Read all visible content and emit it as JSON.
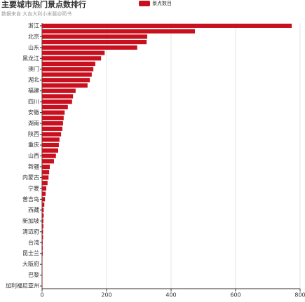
{
  "chart_data": {
    "type": "bar",
    "orientation": "horizontal",
    "title": "主要城市热门景点数排行",
    "subtitle": "数据来自 大吉大利小米酱@简书",
    "legend": "top",
    "series": [
      {
        "name": "景点数目",
        "color": "#c8101e",
        "values": [
          774,
          474,
          326,
          324,
          295,
          194,
          183,
          165,
          159,
          154,
          148,
          141,
          104,
          96,
          93,
          80,
          70,
          67,
          65,
          63,
          59,
          54,
          52,
          50,
          43,
          37,
          24,
          22,
          20,
          17,
          13,
          11,
          9,
          7,
          5,
          5,
          4,
          4,
          3,
          3,
          2,
          2,
          2,
          1,
          1,
          1,
          1,
          1,
          1
        ]
      }
    ],
    "categories": [
      "浙江",
      null,
      "北京",
      null,
      "山东",
      null,
      "黑龙江",
      null,
      "澳门",
      null,
      "湖北",
      null,
      "福建",
      null,
      "四川",
      null,
      "安徽",
      null,
      "湖南",
      null,
      "陕西",
      null,
      "重庆",
      null,
      "山西",
      null,
      "新疆",
      null,
      "内蒙古",
      null,
      "宁夏",
      null,
      "普吉岛",
      null,
      "西藏",
      null,
      "新加坡",
      null,
      "清迈府",
      null,
      "台湾",
      null,
      "昆士兰",
      null,
      "大阪府",
      null,
      "巴黎",
      null,
      "加利福尼亚州"
    ],
    "xlim": [
      0,
      800
    ],
    "xticks": [
      0,
      200,
      400,
      600,
      800
    ],
    "grid": true
  }
}
